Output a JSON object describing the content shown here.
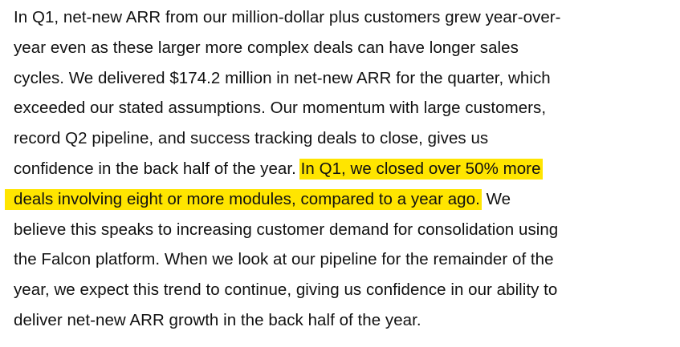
{
  "paragraph": {
    "lines": [
      "In Q1, net-new ARR from our million-dollar plus customers grew year-over-",
      "year even as these larger more complex deals can have longer sales",
      "cycles. We delivered $174.2 million in net-new ARR for the quarter, which",
      "exceeded our stated assumptions. Our momentum with large customers,",
      "record Q2 pipeline, and success tracking deals to close, gives us"
    ],
    "line6_plain": "confidence in the back half of the year. ",
    "line6_highlight": "In Q1, we closed over 50% more",
    "line7_highlight": "deals involving eight or more modules, compared to a year ago.",
    "line7_plain": " We",
    "lines_after": [
      "believe this speaks to increasing customer demand for consolidation using",
      "the Falcon platform. When we look at our pipeline for the remainder of the",
      "year, we expect this trend to continue, giving us confidence in our ability to",
      "deliver net-new ARR growth in the back half of the year."
    ]
  },
  "colors": {
    "highlight": "#ffe500",
    "text": "#111111",
    "background": "#ffffff"
  }
}
